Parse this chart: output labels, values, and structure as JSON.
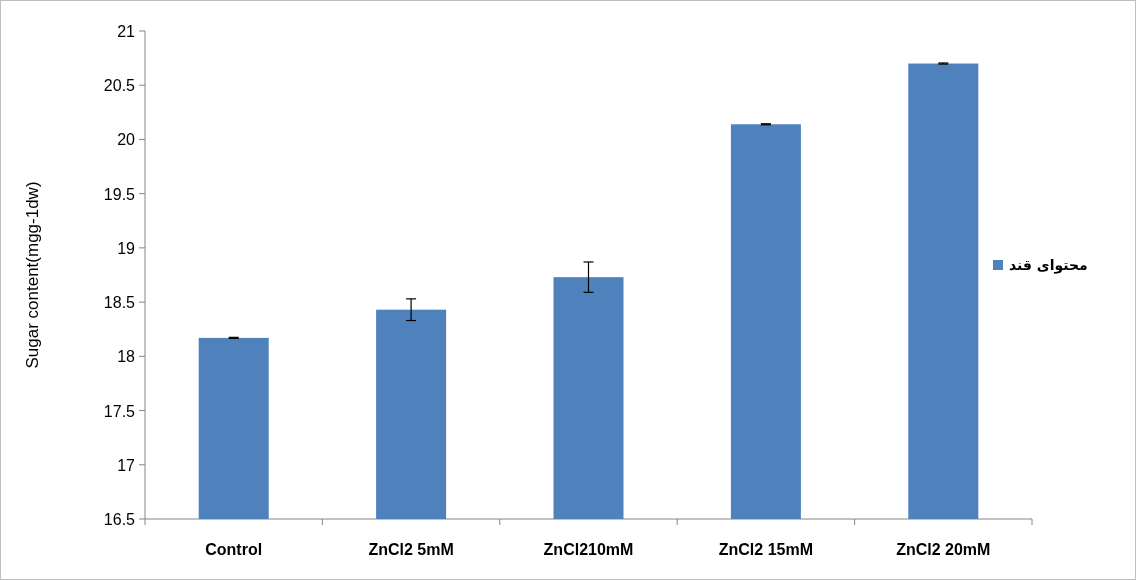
{
  "chart_data": {
    "type": "bar",
    "ylabel": "Sugar content(mgg-1dw)",
    "categories": [
      "Control",
      "ZnCl2 5mM",
      "ZnCl210mM",
      "ZnCl2 15mM",
      "ZnCl2 20mM"
    ],
    "series": [
      {
        "name": "محتوای قند",
        "color": "#4f81bd",
        "values": [
          18.17,
          18.43,
          18.73,
          20.14,
          20.7
        ],
        "errors": [
          0.005,
          0.1,
          0.14,
          0.005,
          0.005
        ]
      }
    ],
    "ylim": [
      16.5,
      21
    ],
    "yticks": [
      16.5,
      17,
      17.5,
      18,
      18.5,
      19,
      19.5,
      20,
      20.5,
      21
    ],
    "grid": false,
    "legend": "right"
  }
}
